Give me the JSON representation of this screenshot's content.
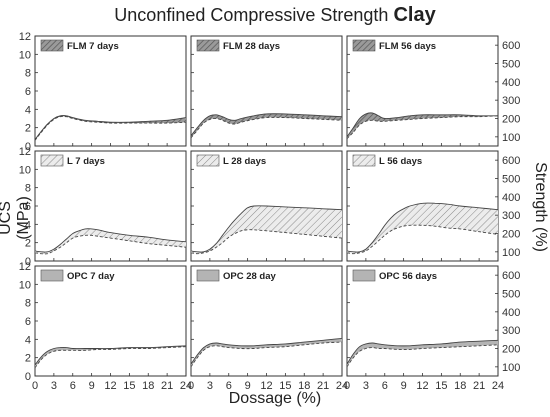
{
  "figure": {
    "title_main": "Unconfined Compressive Strength",
    "title_bold": "Clay",
    "ylabel_left": "UCS (MPa)",
    "ylabel_right": "Strength (%)",
    "xlabel": "Dossage (%)"
  },
  "axes": {
    "x_ticks": [
      0,
      3,
      6,
      9,
      12,
      15,
      18,
      21,
      24
    ],
    "y_ticks_left": [
      0,
      2,
      4,
      6,
      8,
      10,
      12
    ],
    "y_ticks_right": [
      100,
      200,
      300,
      400,
      500,
      600
    ],
    "xlim": [
      0,
      24
    ],
    "ylim": [
      0,
      12
    ]
  },
  "chart_data": [
    {
      "type": "area",
      "title": "FLM 7 days",
      "legend": "FLM 7 days",
      "row": 0,
      "col": 0,
      "fill": "hatch-dark",
      "x": [
        0,
        1,
        2,
        3,
        4,
        5,
        6,
        8,
        10,
        12,
        15,
        18,
        21,
        24
      ],
      "upper": [
        0.7,
        1.6,
        2.4,
        3.0,
        3.3,
        3.3,
        3.1,
        2.8,
        2.7,
        2.6,
        2.6,
        2.7,
        2.8,
        3.1
      ],
      "lower": [
        0.6,
        1.5,
        2.3,
        2.9,
        3.2,
        3.2,
        3.0,
        2.7,
        2.6,
        2.5,
        2.5,
        2.5,
        2.5,
        2.6
      ]
    },
    {
      "type": "area",
      "title": "FLM 28 days",
      "legend": "FLM 28 days",
      "row": 0,
      "col": 1,
      "fill": "hatch-dark",
      "x": [
        0,
        1,
        2,
        3,
        4,
        5,
        6,
        7,
        8,
        10,
        12,
        15,
        18,
        21,
        24
      ],
      "upper": [
        1.1,
        2.0,
        2.8,
        3.3,
        3.4,
        3.2,
        2.9,
        2.8,
        3.0,
        3.3,
        3.5,
        3.5,
        3.4,
        3.3,
        3.2
      ],
      "lower": [
        0.9,
        1.7,
        2.5,
        2.9,
        3.0,
        2.8,
        2.5,
        2.4,
        2.6,
        2.9,
        3.1,
        3.1,
        3.0,
        2.9,
        2.8
      ]
    },
    {
      "type": "area",
      "title": "FLM 56 days",
      "legend": "FLM 56 days",
      "row": 0,
      "col": 2,
      "fill": "hatch-dark",
      "x": [
        0,
        1,
        2,
        3,
        4,
        5,
        6,
        8,
        10,
        12,
        15,
        18,
        21,
        24
      ],
      "upper": [
        1.0,
        2.0,
        3.0,
        3.5,
        3.6,
        3.3,
        3.0,
        3.1,
        3.3,
        3.4,
        3.4,
        3.4,
        3.3,
        3.3
      ],
      "lower": [
        0.8,
        1.5,
        2.3,
        2.7,
        2.8,
        2.7,
        2.7,
        2.8,
        2.9,
        3.0,
        3.1,
        3.2,
        3.2,
        3.3
      ]
    },
    {
      "type": "area",
      "title": "L 7 days",
      "legend": "L 7 days",
      "row": 1,
      "col": 0,
      "fill": "hatch-light",
      "x": [
        0,
        1,
        2,
        3,
        4,
        5,
        6,
        7,
        8,
        9,
        10,
        12,
        15,
        18,
        21,
        24
      ],
      "upper": [
        1.1,
        1.0,
        1.0,
        1.3,
        1.8,
        2.4,
        3.0,
        3.3,
        3.5,
        3.5,
        3.4,
        3.1,
        2.8,
        2.6,
        2.3,
        2.1
      ],
      "lower": [
        0.9,
        0.8,
        0.8,
        1.1,
        1.5,
        2.0,
        2.5,
        2.7,
        2.8,
        2.8,
        2.7,
        2.5,
        2.2,
        1.9,
        1.7,
        1.5
      ]
    },
    {
      "type": "area",
      "title": "L 28 days",
      "legend": "L 28 days",
      "row": 1,
      "col": 1,
      "fill": "hatch-light",
      "x": [
        0,
        1,
        2,
        3,
        4,
        5,
        6,
        7,
        8,
        9,
        10,
        12,
        15,
        18,
        21,
        24
      ],
      "upper": [
        1.1,
        1.0,
        1.0,
        1.3,
        1.9,
        2.8,
        3.7,
        4.5,
        5.2,
        5.8,
        6.0,
        6.0,
        5.9,
        5.8,
        5.7,
        5.6
      ],
      "lower": [
        0.9,
        0.8,
        0.9,
        1.1,
        1.5,
        2.0,
        2.6,
        3.0,
        3.3,
        3.4,
        3.4,
        3.3,
        3.1,
        2.9,
        2.7,
        2.5
      ]
    },
    {
      "type": "area",
      "title": "L 56 days",
      "legend": "L 56 days",
      "row": 1,
      "col": 2,
      "fill": "hatch-light",
      "x": [
        0,
        1,
        2,
        3,
        4,
        5,
        6,
        7,
        8,
        9,
        10,
        12,
        14,
        16,
        18,
        21,
        24
      ],
      "upper": [
        1.1,
        1.0,
        1.0,
        1.3,
        2.0,
        2.9,
        3.9,
        4.7,
        5.3,
        5.7,
        6.0,
        6.3,
        6.3,
        6.2,
        6.0,
        5.8,
        5.6
      ],
      "lower": [
        0.9,
        0.8,
        0.9,
        1.1,
        1.6,
        2.2,
        2.8,
        3.3,
        3.6,
        3.8,
        3.9,
        3.9,
        3.8,
        3.6,
        3.5,
        3.2,
        2.9
      ]
    },
    {
      "type": "area",
      "title": "OPC 7 day",
      "legend": "OPC 7 day",
      "row": 2,
      "col": 0,
      "fill": "solid-gray",
      "x": [
        0,
        1,
        2,
        3,
        4,
        5,
        6,
        8,
        10,
        12,
        15,
        18,
        21,
        24
      ],
      "upper": [
        1.2,
        2.1,
        2.7,
        3.0,
        3.1,
        3.1,
        3.0,
        3.0,
        3.0,
        3.0,
        3.1,
        3.1,
        3.2,
        3.3
      ],
      "lower": [
        0.9,
        1.8,
        2.4,
        2.7,
        2.8,
        2.8,
        2.8,
        2.8,
        2.9,
        2.9,
        3.0,
        3.0,
        3.1,
        3.2
      ]
    },
    {
      "type": "area",
      "title": "OPC 28 day",
      "legend": "OPC 28 day",
      "row": 2,
      "col": 1,
      "fill": "solid-gray",
      "x": [
        0,
        1,
        2,
        3,
        4,
        5,
        6,
        8,
        10,
        12,
        15,
        18,
        21,
        24
      ],
      "upper": [
        1.3,
        2.3,
        3.1,
        3.5,
        3.6,
        3.5,
        3.4,
        3.3,
        3.3,
        3.4,
        3.5,
        3.7,
        3.9,
        4.1
      ],
      "lower": [
        1.0,
        2.0,
        2.8,
        3.2,
        3.3,
        3.2,
        3.1,
        3.0,
        3.0,
        3.1,
        3.2,
        3.4,
        3.6,
        3.7
      ]
    },
    {
      "type": "area",
      "title": "OPC 56 days",
      "legend": "OPC 56 days",
      "row": 2,
      "col": 2,
      "fill": "solid-gray",
      "x": [
        0,
        1,
        2,
        3,
        4,
        5,
        6,
        8,
        10,
        12,
        15,
        18,
        21,
        24
      ],
      "upper": [
        1.3,
        2.4,
        3.2,
        3.5,
        3.6,
        3.5,
        3.4,
        3.3,
        3.3,
        3.4,
        3.5,
        3.7,
        3.8,
        3.9
      ],
      "lower": [
        1.0,
        2.0,
        2.7,
        3.0,
        3.1,
        3.0,
        3.0,
        2.9,
        2.9,
        3.0,
        3.1,
        3.2,
        3.3,
        3.4
      ]
    }
  ],
  "colors": {
    "hatch_dark_fill": "#8c8c8c",
    "hatch_light_fill": "#d8d8d8",
    "solid_fill": "#b4b4b4",
    "line": "#444444",
    "axis": "#333333"
  }
}
